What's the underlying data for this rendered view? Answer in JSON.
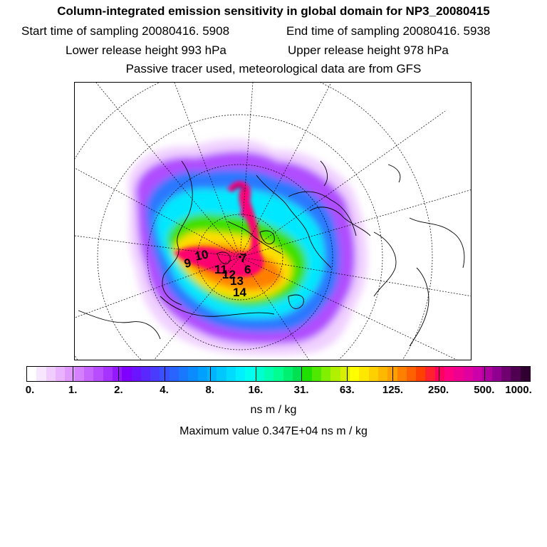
{
  "header": {
    "title": "Column-integrated emission sensitivity in global domain for NP3_20080415",
    "start_label": "Start time of sampling 20080416.  5908",
    "end_label": "End time of sampling 20080416.  5938",
    "lower_label": "Lower release height  993 hPa",
    "upper_label": "Upper release height  978 hPa",
    "tracer_note": "Passive tracer used, meteorological data are from GFS"
  },
  "chart_data": {
    "type": "heatmap",
    "projection": "polar-stereographic",
    "colorbar": {
      "tick_labels": [
        "0.",
        "1.",
        "2.",
        "4.",
        "8.",
        "16.",
        "31.",
        "63.",
        "125.",
        "250.",
        "500.",
        "1000."
      ],
      "colors": [
        "#ffffff",
        "#f7e6ff",
        "#f1ccff",
        "#e9b3ff",
        "#e099ff",
        "#d480ff",
        "#c766ff",
        "#b84dff",
        "#a633ff",
        "#9419ff",
        "#7f00ff",
        "#6b14ff",
        "#5a28ff",
        "#4a3cff",
        "#3a50ff",
        "#2a64ff",
        "#1a78ff",
        "#0a8cff",
        "#00a0ff",
        "#00b4ff",
        "#00c8ff",
        "#00dcff",
        "#00f0ff",
        "#00ffee",
        "#00ffd0",
        "#00ffb0",
        "#00ff90",
        "#00f070",
        "#00e050",
        "#20e000",
        "#50e800",
        "#80f000",
        "#b0f000",
        "#d8f000",
        "#ffff00",
        "#ffe800",
        "#ffd000",
        "#ffb800",
        "#ffa000",
        "#ff8000",
        "#ff6000",
        "#ff4000",
        "#ff2030",
        "#ff0060",
        "#ff0080",
        "#f00090",
        "#e000a0",
        "#cc00a8",
        "#b000a0",
        "#900090",
        "#700070",
        "#500050",
        "#300030"
      ],
      "units": "ns m / kg"
    },
    "max_value_label": "Maximum value  0.347E+04 ns m / kg",
    "plume_labels": [
      "9",
      "10",
      "7",
      "11",
      "12",
      "13",
      "6",
      "14"
    ]
  }
}
